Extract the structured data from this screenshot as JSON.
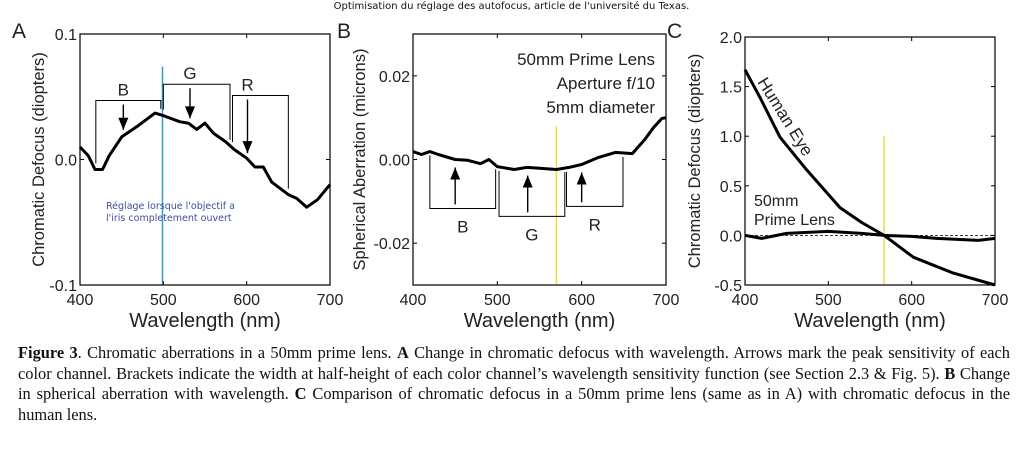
{
  "header": {
    "text": "Optimisation du réglage des autofocus, article de l'université du Texas."
  },
  "colors": {
    "curve": "#000000",
    "blue_marker": "#2a9fd0",
    "yellow_marker": "#e8e04a",
    "note_text": "#3b4fa0"
  },
  "chart_data": [
    {
      "panel": "A",
      "type": "line",
      "title": "",
      "xlabel": "Wavelength (nm)",
      "ylabel": "Chromatic Defocus (diopters)",
      "xlim": [
        400,
        700
      ],
      "ylim": [
        -0.1,
        0.1
      ],
      "xticks": [
        400,
        500,
        600,
        700
      ],
      "xtick_labels": [
        "400",
        "500",
        "600",
        "700"
      ],
      "yticks": [
        -0.1,
        0.0,
        0.1
      ],
      "ytick_labels": [
        "-0.1",
        "0.0",
        "0.1"
      ],
      "grid": false,
      "series": [
        {
          "name": "50mm prime lens",
          "x": [
            400,
            410,
            418,
            427,
            435,
            450,
            470,
            490,
            500,
            520,
            530,
            540,
            550,
            560,
            575,
            585,
            600,
            610,
            620,
            630,
            650,
            660,
            672,
            685,
            700
          ],
          "y": [
            0.01,
            0.003,
            -0.008,
            -0.008,
            0.003,
            0.018,
            0.027,
            0.037,
            0.035,
            0.03,
            0.029,
            0.024,
            0.029,
            0.021,
            0.014,
            0.008,
            0.001,
            -0.006,
            -0.006,
            -0.018,
            -0.028,
            -0.031,
            -0.038,
            -0.032,
            -0.02
          ]
        }
      ],
      "brackets": [
        {
          "label": "B",
          "start": 419,
          "end": 497,
          "peak": 452,
          "level": 0.047
        },
        {
          "label": "G",
          "start": 500,
          "end": 580,
          "peak": 532,
          "level": 0.06
        },
        {
          "label": "R",
          "start": 583,
          "end": 650,
          "peak": 601,
          "level": 0.051
        }
      ],
      "vline": {
        "x": 499,
        "color": "blue",
        "y_top": 0.074
      },
      "annotations": [
        {
          "text_lines": [
            "Réglage lorsque l'objectif a",
            "l'iris completement ouvert"
          ]
        }
      ]
    },
    {
      "panel": "B",
      "type": "line",
      "title": "",
      "xlabel": "Wavelength (nm)",
      "ylabel": "Spherical Aberration (microns)",
      "xlim": [
        400,
        700
      ],
      "ylim": [
        -0.03,
        0.03
      ],
      "xticks": [
        400,
        500,
        600,
        700
      ],
      "xtick_labels": [
        "400",
        "500",
        "600",
        "700"
      ],
      "yticks": [
        -0.02,
        0.0,
        0.02
      ],
      "ytick_labels": [
        "-0.02",
        "0.00",
        "0.02"
      ],
      "grid": false,
      "series": [
        {
          "name": "50mm prime lens",
          "x": [
            400,
            410,
            420,
            430,
            450,
            465,
            480,
            490,
            500,
            520,
            535,
            550,
            570,
            585,
            600,
            620,
            640,
            660,
            675,
            685,
            695,
            700
          ],
          "y": [
            0.0019,
            0.0012,
            0.0019,
            0.0012,
            0.0,
            -0.0002,
            -0.001,
            0.0,
            -0.0017,
            -0.0024,
            -0.0019,
            -0.0021,
            -0.0024,
            -0.0019,
            -0.0012,
            0.0005,
            0.0017,
            0.0014,
            0.0048,
            0.0076,
            0.0098,
            0.01
          ]
        }
      ],
      "brackets": [
        {
          "label": "B",
          "start": 420,
          "end": 498,
          "peak": 450,
          "level": -0.0117
        },
        {
          "label": "G",
          "start": 502,
          "end": 580,
          "peak": 536,
          "level": -0.0136
        },
        {
          "label": "R",
          "start": 582,
          "end": 649,
          "peak": 600,
          "level": -0.0112
        }
      ],
      "vline": {
        "x": 570,
        "color": "yellow",
        "y_top": 0.008
      },
      "annotations": [
        {
          "text_lines": [
            "50mm Prime Lens",
            "Aperture f/10",
            "5mm diameter"
          ]
        }
      ]
    },
    {
      "panel": "C",
      "type": "line",
      "title": "",
      "xlabel": "Wavelength (nm)",
      "ylabel": "Chromatic Defocus (diopters)",
      "xlim": [
        400,
        700
      ],
      "ylim": [
        -0.5,
        2.0
      ],
      "xticks": [
        400,
        500,
        600,
        700
      ],
      "xtick_labels": [
        "400",
        "500",
        "600",
        "700"
      ],
      "yticks": [
        -0.5,
        0.0,
        0.5,
        1.0,
        1.5,
        2.0
      ],
      "ytick_labels": [
        "-0.5",
        "0.0",
        "0.5",
        "1.0",
        "1.5",
        "2.0"
      ],
      "grid": false,
      "series": [
        {
          "name": "Human Eye",
          "x": [
            400,
            418,
            442,
            474,
            514,
            540,
            567,
            602,
            650,
            700
          ],
          "y": [
            1.67,
            1.39,
            0.99,
            0.66,
            0.28,
            0.13,
            0.0,
            -0.22,
            -0.38,
            -0.5
          ]
        },
        {
          "name": "50mm Prime Lens",
          "x": [
            400,
            420,
            450,
            500,
            540,
            567,
            600,
            630,
            680,
            700
          ],
          "y": [
            0.0,
            -0.03,
            0.02,
            0.04,
            0.02,
            0.0,
            -0.01,
            -0.03,
            -0.05,
            -0.03
          ]
        }
      ],
      "reference_line": {
        "y": 0.0,
        "style": "dashed"
      },
      "vline": {
        "x": 567,
        "color": "yellow",
        "y_top": 1.0
      },
      "annotations": [
        {
          "text_lines": [
            "Human Eye"
          ]
        },
        {
          "text_lines": [
            "50mm",
            "Prime Lens"
          ]
        }
      ]
    }
  ],
  "panel_letters": [
    "A",
    "B",
    "C"
  ],
  "caption": {
    "figure_label": "Figure 3",
    "intro": ". Chromatic aberrations in a 50mm prime lens. ",
    "a_label": "A",
    "a_text": " Change in chromatic defocus with wavelength. Arrows mark the peak sensitivity of each color channel. Brackets indicate the width at half-height of each color channel’s wavelength sensitivity function (see Section 2.3 & Fig. 5). ",
    "b_label": "B",
    "b_text": " Change in spherical aberration with wavelength. ",
    "c_label": "C",
    "c_text": " Comparison of chromatic defocus in a 50mm prime lens (same as in A) with chromatic defocus in the human lens."
  }
}
